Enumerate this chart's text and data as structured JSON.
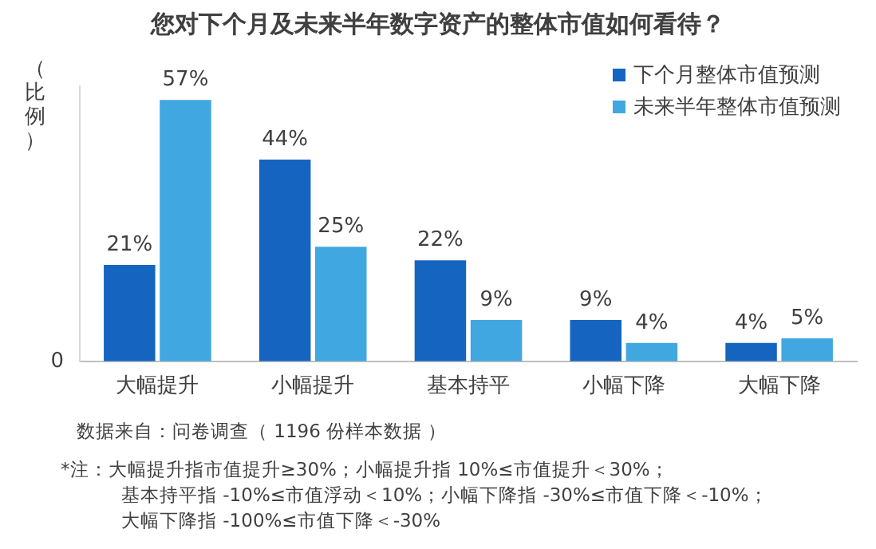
{
  "chart_data": {
    "type": "bar",
    "title": "您对下个月及未来半年数字资产的整体市值如何看待？",
    "ylabel": "（比例）",
    "categories": [
      "大幅提升",
      "小幅提升",
      "基本持平",
      "小幅下降",
      "大幅下降"
    ],
    "series": [
      {
        "name": "下个月整体市值预测",
        "color": "#1565c0",
        "values": [
          21,
          44,
          22,
          9,
          4
        ],
        "value_labels": [
          "21%",
          "44%",
          "22%",
          "9%",
          "4%"
        ]
      },
      {
        "name": "未来半年整体市值预测",
        "color": "#41a7e0",
        "values": [
          57,
          25,
          9,
          4,
          5
        ],
        "value_labels": [
          "57%",
          "25%",
          "9%",
          "4%",
          "5%"
        ]
      }
    ],
    "grid": false,
    "legend": "top right",
    "annotations": [
      "0",
      "数据来自：问卷调查（ 1196 份样本数据 ）",
      "*注：大幅提升指市值提升≥30%；小幅提升指 10%≤市值提升＜30%；",
      "基本持平指 -10%≤市值浮动＜10%；小幅下降指 -30%≤市值下降＜-10%；",
      "大幅下降指 -100%≤市值下降＜-30%"
    ]
  }
}
